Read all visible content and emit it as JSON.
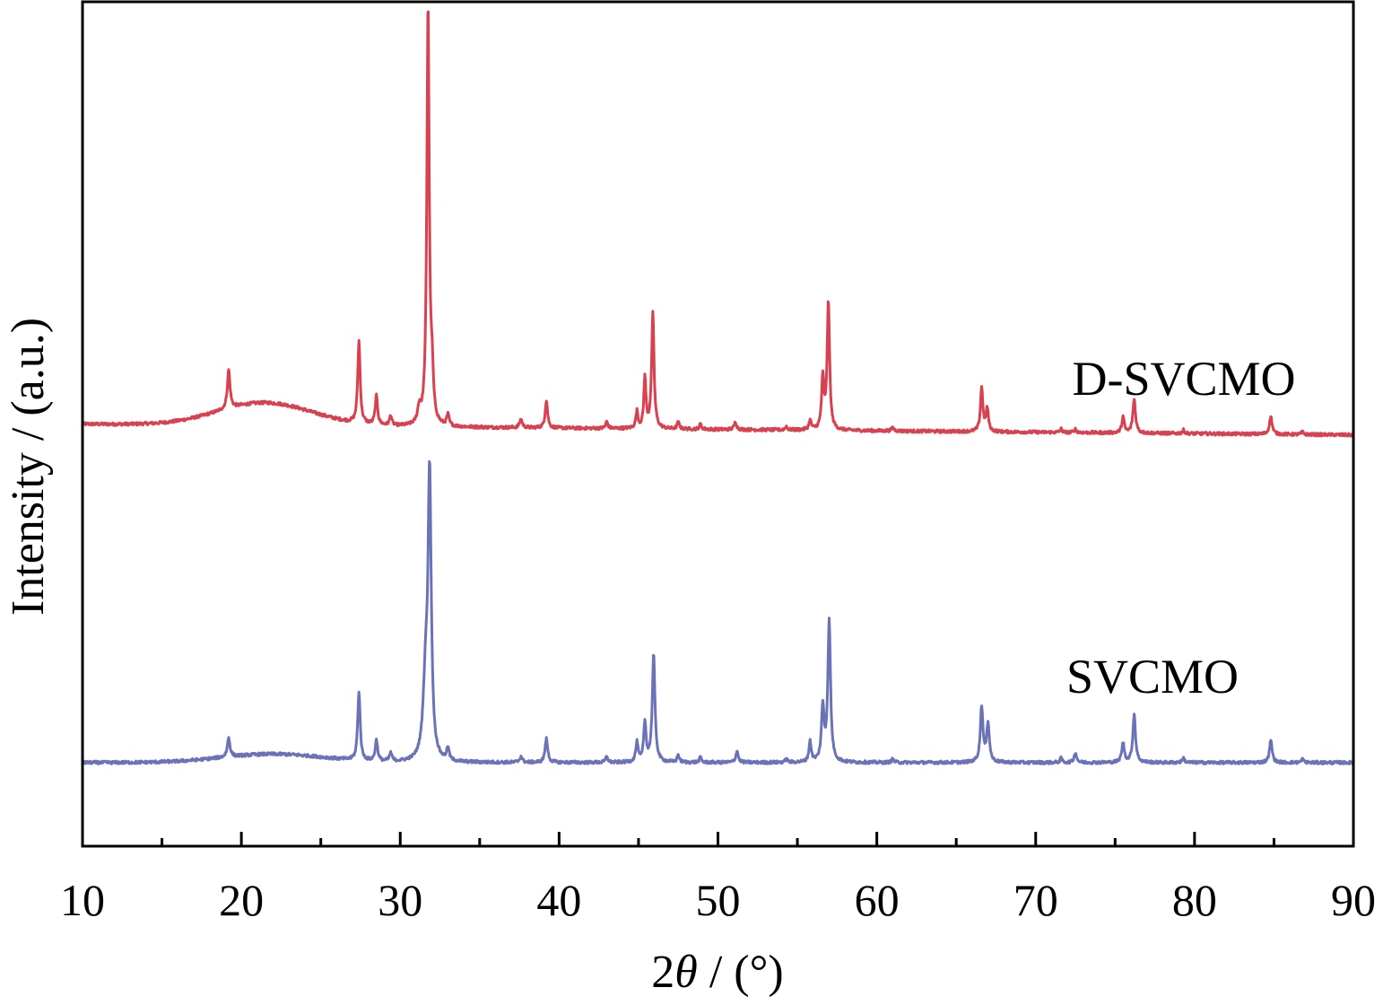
{
  "chart_data": {
    "type": "line",
    "title": "",
    "xlabel": "2θ / (°)",
    "xlabel_parts": {
      "prefix": "2",
      "symbol": "θ",
      "suffix": " / (°)"
    },
    "ylabel": "Intensity / (a.u.)",
    "xlim": [
      10,
      90
    ],
    "xticks": [
      10,
      20,
      30,
      40,
      50,
      60,
      70,
      80,
      90
    ],
    "xtick_labels": [
      "10",
      "20",
      "30",
      "40",
      "50",
      "60",
      "70",
      "80",
      "90"
    ],
    "x_minor_step": 5,
    "y_ticks_shown": false,
    "grid": false,
    "legend": "inline labels at right of each curve",
    "ylim": [
      0,
      100
    ],
    "series": [
      {
        "name": "D-SVCMO",
        "color": "#d8414f",
        "baseline_start": 50.0,
        "baseline_end": 48.7,
        "hump": {
          "center": 21.5,
          "width": 4.2,
          "height": 2.7
        },
        "peaks": [
          [
            19.2,
            0.1,
            4.6
          ],
          [
            27.4,
            0.09,
            9.7
          ],
          [
            28.5,
            0.09,
            3.4
          ],
          [
            29.4,
            0.08,
            1.2
          ],
          [
            31.2,
            0.12,
            1.8
          ],
          [
            31.75,
            0.09,
            50.0
          ],
          [
            32.0,
            0.1,
            5.0
          ],
          [
            33.0,
            0.09,
            1.3
          ],
          [
            37.6,
            0.1,
            1.0
          ],
          [
            39.2,
            0.09,
            3.3
          ],
          [
            43.0,
            0.08,
            0.8
          ],
          [
            44.9,
            0.08,
            2.0
          ],
          [
            45.4,
            0.08,
            6.0
          ],
          [
            45.9,
            0.09,
            13.6
          ],
          [
            47.5,
            0.08,
            0.8
          ],
          [
            48.9,
            0.08,
            0.6
          ],
          [
            51.1,
            0.09,
            0.9
          ],
          [
            54.3,
            0.08,
            0.4
          ],
          [
            55.8,
            0.09,
            1.1
          ],
          [
            56.6,
            0.09,
            6.0
          ],
          [
            56.95,
            0.09,
            15.2
          ],
          [
            61.0,
            0.09,
            0.4
          ],
          [
            66.6,
            0.09,
            5.2
          ],
          [
            66.95,
            0.09,
            2.7
          ],
          [
            71.6,
            0.08,
            0.4
          ],
          [
            72.5,
            0.08,
            0.4
          ],
          [
            75.5,
            0.09,
            1.9
          ],
          [
            76.2,
            0.1,
            4.0
          ],
          [
            79.3,
            0.08,
            0.4
          ],
          [
            84.8,
            0.1,
            2.1
          ],
          [
            86.8,
            0.08,
            0.3
          ]
        ]
      },
      {
        "name": "SVCMO",
        "color": "#6b73b8",
        "baseline_start": 9.9,
        "baseline_end": 9.9,
        "hump": {
          "center": 22.0,
          "width": 4.5,
          "height": 1.0
        },
        "peaks": [
          [
            19.2,
            0.1,
            2.3
          ],
          [
            27.4,
            0.09,
            8.2
          ],
          [
            28.5,
            0.09,
            2.5
          ],
          [
            29.4,
            0.09,
            1.0
          ],
          [
            31.6,
            0.18,
            9.0
          ],
          [
            31.85,
            0.12,
            33.0
          ],
          [
            33.0,
            0.09,
            1.5
          ],
          [
            37.6,
            0.1,
            0.7
          ],
          [
            39.2,
            0.1,
            2.8
          ],
          [
            43.0,
            0.08,
            0.7
          ],
          [
            44.9,
            0.09,
            2.3
          ],
          [
            45.4,
            0.09,
            4.6
          ],
          [
            45.95,
            0.1,
            12.8
          ],
          [
            47.5,
            0.08,
            0.9
          ],
          [
            48.9,
            0.08,
            0.6
          ],
          [
            51.2,
            0.09,
            1.4
          ],
          [
            54.3,
            0.08,
            0.4
          ],
          [
            55.8,
            0.09,
            2.4
          ],
          [
            56.6,
            0.1,
            6.3
          ],
          [
            57.0,
            0.1,
            16.6
          ],
          [
            61.0,
            0.09,
            0.4
          ],
          [
            66.6,
            0.1,
            6.6
          ],
          [
            67.0,
            0.1,
            4.6
          ],
          [
            71.6,
            0.08,
            0.5
          ],
          [
            72.5,
            0.09,
            1.2
          ],
          [
            75.5,
            0.1,
            2.3
          ],
          [
            76.2,
            0.1,
            5.7
          ],
          [
            79.3,
            0.09,
            0.5
          ],
          [
            84.8,
            0.1,
            2.6
          ],
          [
            86.8,
            0.08,
            0.4
          ]
        ]
      }
    ]
  }
}
